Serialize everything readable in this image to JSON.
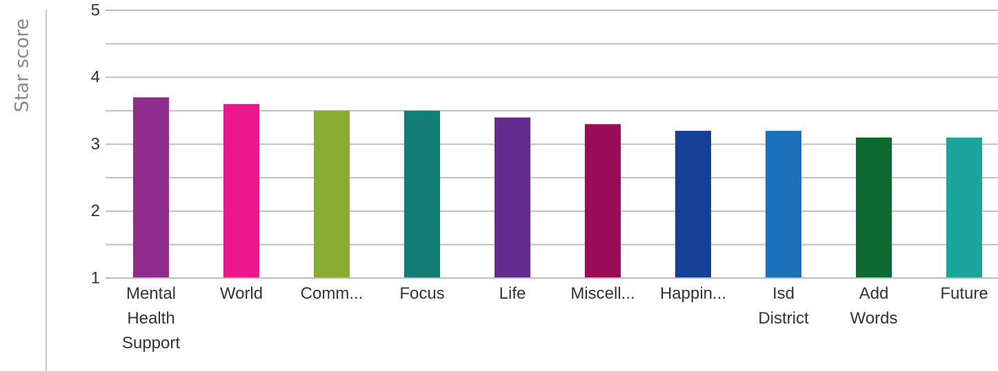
{
  "chart_data": {
    "type": "bar",
    "ylabel": "Star score",
    "xlabel": "",
    "ylim": [
      1,
      5
    ],
    "yticks": [
      "1",
      "2",
      "3",
      "4",
      "5"
    ],
    "grid": true,
    "categories": [
      "Mental Health Support",
      "World",
      "Comm...",
      "Focus",
      "Life",
      "Miscell...",
      "Happin...",
      "Isd District",
      "Add Words",
      "Future"
    ],
    "values": [
      3.7,
      3.6,
      3.5,
      3.5,
      3.4,
      3.3,
      3.2,
      3.2,
      3.1,
      3.1
    ],
    "colors": [
      "#8e2d8c",
      "#ec178a",
      "#89ad30",
      "#137d76",
      "#652c90",
      "#9a0c5a",
      "#163f96",
      "#1c72ba",
      "#0c6a32",
      "#1ba59c"
    ]
  }
}
